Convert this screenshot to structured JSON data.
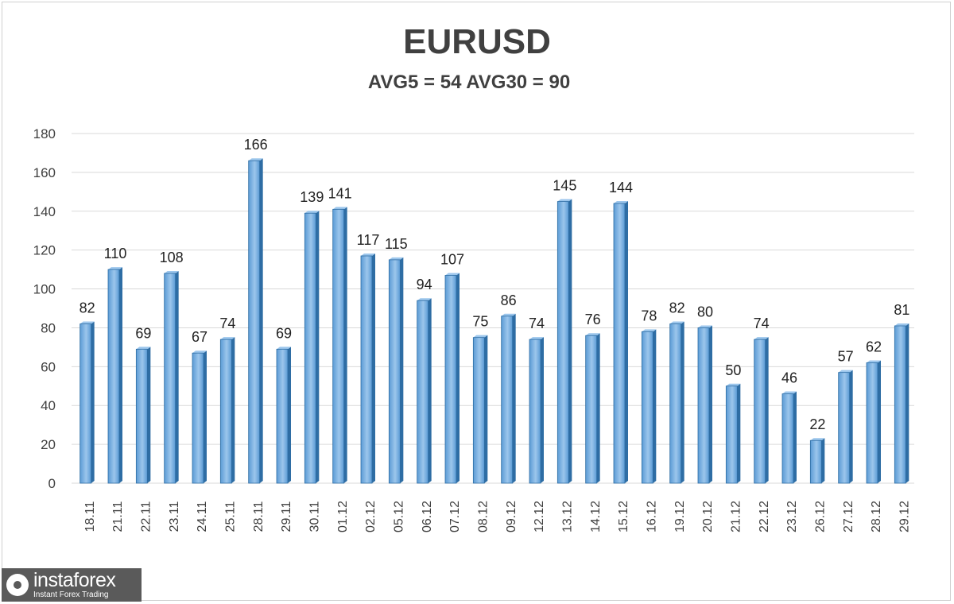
{
  "chart_data": {
    "type": "bar",
    "title": "EURUSD",
    "subtitle": "AVG5 = 54 AVG30 = 90",
    "categories": [
      "18.11",
      "21.11",
      "22.11",
      "23.11",
      "24.11",
      "25.11",
      "28.11",
      "29.11",
      "30.11",
      "01.12",
      "02.12",
      "05.12",
      "06.12",
      "07.12",
      "08.12",
      "09.12",
      "12.12",
      "13.12",
      "14.12",
      "15.12",
      "16.12",
      "19.12",
      "20.12",
      "21.12",
      "22.12",
      "23.12",
      "26.12",
      "27.12",
      "28.12",
      "29.12"
    ],
    "values": [
      82,
      110,
      69,
      108,
      67,
      74,
      166,
      69,
      139,
      141,
      117,
      115,
      94,
      107,
      75,
      86,
      74,
      145,
      76,
      144,
      78,
      82,
      80,
      50,
      74,
      46,
      22,
      57,
      62,
      81
    ],
    "ylim": [
      0,
      180
    ],
    "yticks": [
      0,
      20,
      40,
      60,
      80,
      100,
      120,
      140,
      160,
      180
    ],
    "grid": true,
    "bar_color": "#5b9bd5",
    "bar_dark": "#2e6da4",
    "bar_light": "#9cc6ec"
  },
  "logo": {
    "name": "instaforex",
    "tagline": "Instant Forex Trading"
  }
}
